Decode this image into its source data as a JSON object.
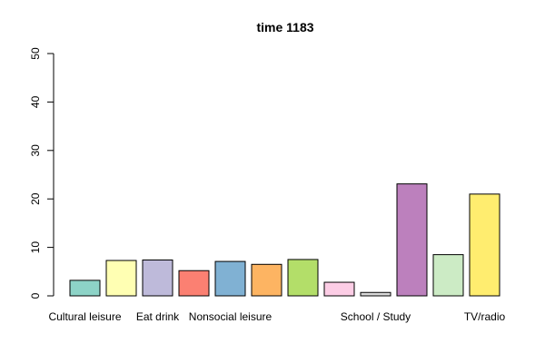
{
  "chart_data": {
    "type": "bar",
    "title": "time 1183",
    "xlabel": "",
    "ylabel": "",
    "ylim": [
      0,
      50
    ],
    "yticks": [
      0,
      10,
      20,
      30,
      40,
      50
    ],
    "grid": false,
    "legend": "none",
    "categories": [
      "Cultural leisure",
      "",
      "Eat drink",
      "",
      "Nonsocial leisure",
      "",
      "",
      "",
      "School / Study",
      "",
      "",
      "TV/radio"
    ],
    "values": [
      3.2,
      7.3,
      7.4,
      5.2,
      7.1,
      6.5,
      7.5,
      2.8,
      0.7,
      23.1,
      8.5,
      21.0
    ],
    "colors": [
      "#8DD3C7",
      "#FFFFB3",
      "#BEBADA",
      "#FB8072",
      "#80B1D3",
      "#FDB462",
      "#B3DE69",
      "#FCCDE5",
      "#D9D9D9",
      "#BC80BD",
      "#CCEBC5",
      "#FFED6F"
    ]
  }
}
